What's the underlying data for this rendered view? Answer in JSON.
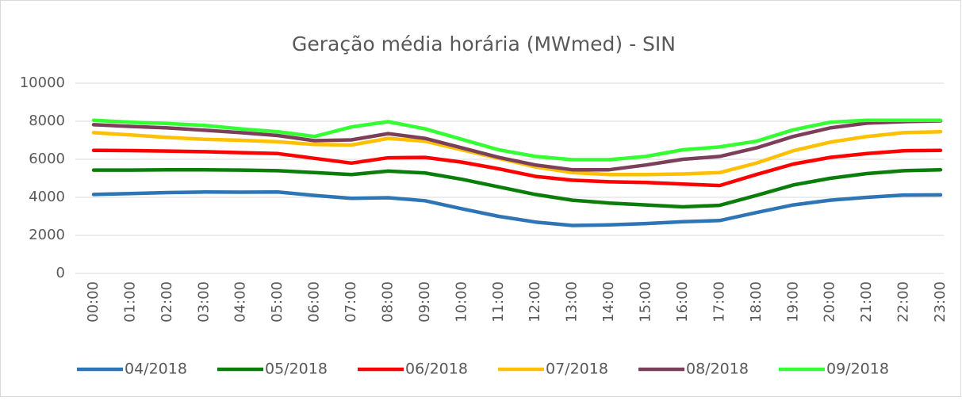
{
  "chart_data": {
    "type": "line",
    "title": "Geração média horária (MWmed) - SIN",
    "categories": [
      "00:00",
      "01:00",
      "02:00",
      "03:00",
      "04:00",
      "05:00",
      "06:00",
      "07:00",
      "08:00",
      "09:00",
      "10:00",
      "11:00",
      "12:00",
      "13:00",
      "14:00",
      "15:00",
      "16:00",
      "17:00",
      "18:00",
      "19:00",
      "20:00",
      "21:00",
      "22:00",
      "23:00"
    ],
    "series": [
      {
        "name": "04/2018",
        "color": "#2e75b6",
        "values": [
          4150,
          4200,
          4250,
          4280,
          4270,
          4280,
          4100,
          3950,
          3980,
          3820,
          3400,
          3000,
          2700,
          2520,
          2550,
          2620,
          2720,
          2780,
          3200,
          3600,
          3850,
          4000,
          4120,
          4130
        ]
      },
      {
        "name": "05/2018",
        "color": "#0a7d0a",
        "values": [
          5430,
          5430,
          5450,
          5450,
          5430,
          5400,
          5300,
          5200,
          5380,
          5280,
          4950,
          4550,
          4150,
          3850,
          3700,
          3600,
          3500,
          3580,
          4100,
          4650,
          5000,
          5250,
          5400,
          5450
        ]
      },
      {
        "name": "06/2018",
        "color": "#ff0000",
        "values": [
          6470,
          6460,
          6430,
          6400,
          6350,
          6300,
          6050,
          5800,
          6080,
          6100,
          5850,
          5500,
          5100,
          4900,
          4820,
          4780,
          4700,
          4620,
          5200,
          5750,
          6100,
          6300,
          6450,
          6470
        ]
      },
      {
        "name": "07/2018",
        "color": "#ffc000",
        "values": [
          7400,
          7280,
          7150,
          7050,
          7000,
          6920,
          6780,
          6750,
          7100,
          6950,
          6500,
          6050,
          5600,
          5300,
          5200,
          5200,
          5230,
          5300,
          5800,
          6450,
          6900,
          7200,
          7400,
          7450
        ]
      },
      {
        "name": "08/2018",
        "color": "#7b3f5a",
        "values": [
          7820,
          7730,
          7650,
          7530,
          7400,
          7250,
          6980,
          7020,
          7350,
          7100,
          6600,
          6100,
          5700,
          5450,
          5450,
          5700,
          6000,
          6150,
          6600,
          7200,
          7650,
          7900,
          7980,
          8020
        ]
      },
      {
        "name": "09/2018",
        "color": "#33ff33",
        "values": [
          8050,
          7950,
          7880,
          7780,
          7600,
          7450,
          7200,
          7700,
          7980,
          7600,
          7050,
          6500,
          6150,
          5980,
          5980,
          6150,
          6500,
          6650,
          6950,
          7550,
          7950,
          8050,
          8050,
          8050
        ]
      }
    ],
    "ylim": [
      0,
      10000
    ],
    "yticks": [
      0,
      2000,
      4000,
      6000,
      8000,
      10000
    ],
    "grid": true,
    "legend": "bottom"
  }
}
